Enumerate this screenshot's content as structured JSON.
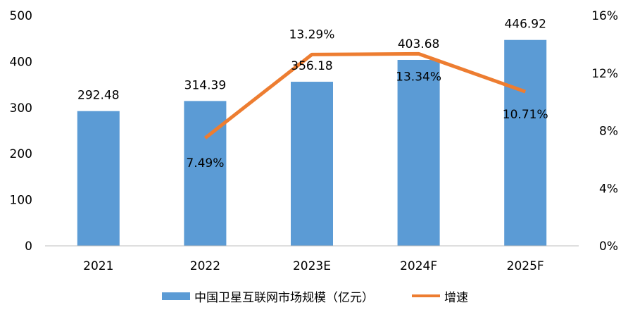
{
  "chart_data": {
    "type": "bar",
    "categories": [
      "2021",
      "2022",
      "2023E",
      "2024F",
      "2025F"
    ],
    "series": [
      {
        "name": "中国卫星互联网市场规模（亿元）",
        "type": "bar",
        "axis": "left",
        "color": "#5B9BD5",
        "values": [
          292.48,
          314.39,
          356.18,
          403.68,
          446.92
        ],
        "labels": [
          "292.48",
          "314.39",
          "356.18",
          "403.68",
          "446.92"
        ]
      },
      {
        "name": "增速",
        "type": "line",
        "axis": "right",
        "color": "#ED7D31",
        "values": [
          null,
          7.49,
          13.29,
          13.34,
          10.71
        ],
        "labels": [
          "",
          "7.49%",
          "13.29%",
          "13.34%",
          "10.71%"
        ]
      }
    ],
    "y_left": {
      "min": 0,
      "max": 500,
      "ticks": [
        "0",
        "100",
        "200",
        "300",
        "400",
        "500"
      ]
    },
    "y_right": {
      "min": 0,
      "max": 16,
      "ticks": [
        "0%",
        "4%",
        "8%",
        "12%",
        "16%"
      ]
    },
    "grid": false,
    "legend_position": "bottom"
  }
}
